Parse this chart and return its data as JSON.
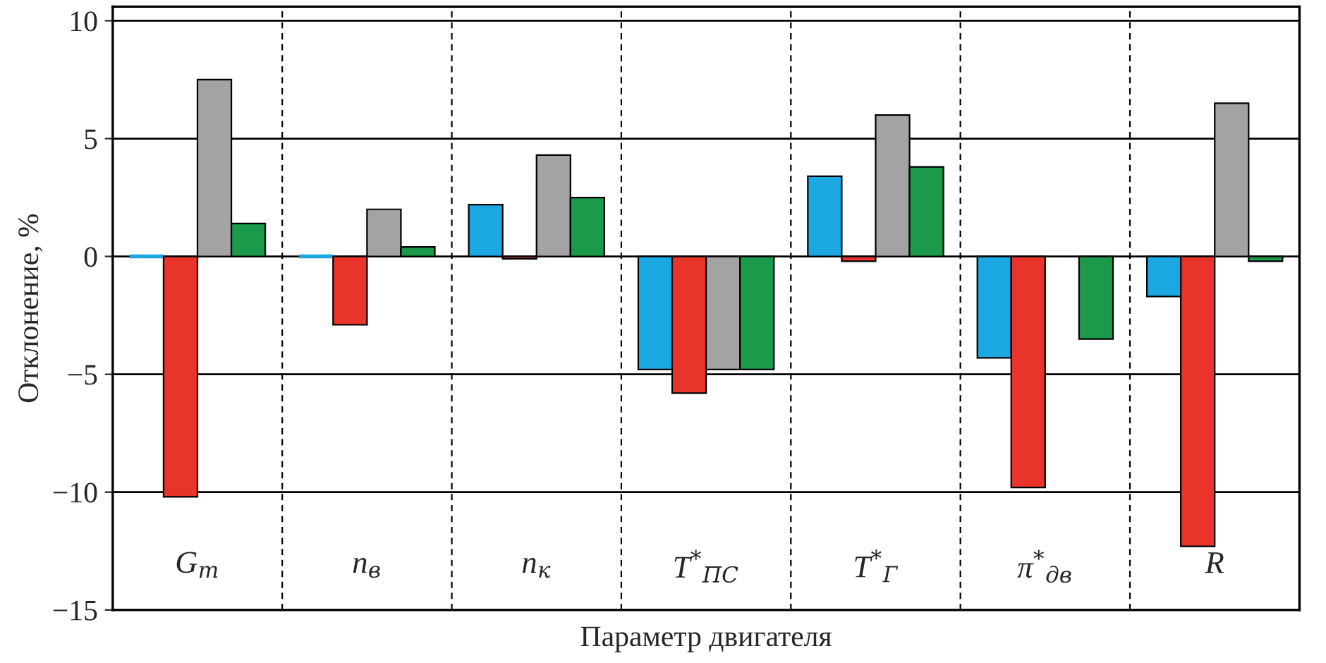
{
  "chart_data": {
    "type": "bar",
    "xlabel": "Параметр двигателя",
    "ylabel": "Отклонение, %",
    "categories": [
      "G$_{т}$",
      "n$_{в}$",
      "n$_{к}$",
      "T$^{*}$$_{ПС}$",
      "T$^{*}$$_{Г}$",
      "π$^{*}$$_{дв}$",
      "R"
    ],
    "series": [
      {
        "color": "#1ba8e2",
        "values": [
          0,
          0,
          2.2,
          -4.8,
          3.4,
          -4.3,
          -1.7
        ]
      },
      {
        "color": "#e8342a",
        "values": [
          -10.2,
          -2.9,
          -0.1,
          -5.8,
          -0.2,
          -9.8,
          -12.3
        ]
      },
      {
        "color": "#a3a3a3",
        "values": [
          7.5,
          2.0,
          4.3,
          -4.8,
          6.0,
          null,
          6.5
        ]
      },
      {
        "color": "#1b9a4b",
        "values": [
          1.4,
          0.4,
          2.5,
          -4.8,
          3.8,
          -3.5,
          -0.2
        ]
      }
    ],
    "ylim": [
      -15,
      10.6
    ],
    "yticks": [
      {
        "value": -15,
        "label": "−15"
      },
      {
        "value": -10,
        "label": "−10"
      },
      {
        "value": -5,
        "label": "−5"
      },
      0,
      5,
      10
    ],
    "grid": "y",
    "legend": false
  }
}
